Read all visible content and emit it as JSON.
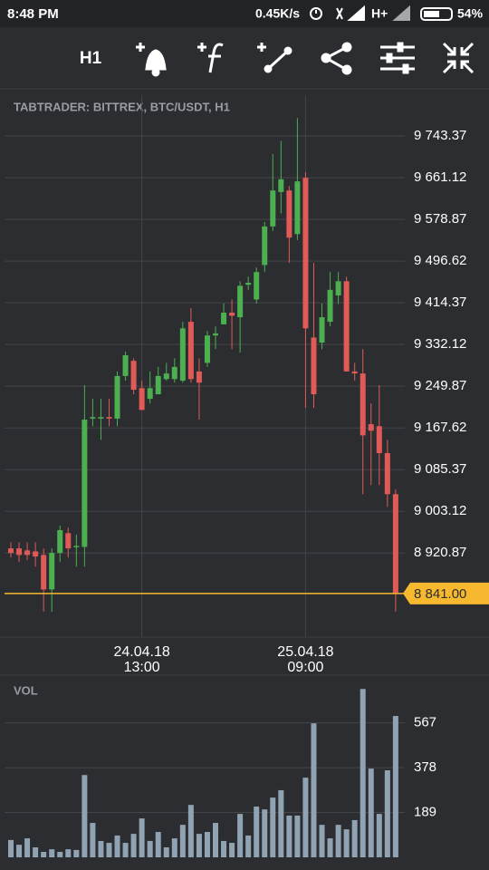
{
  "status_bar": {
    "time": "8:48 PM",
    "speed": "0.45K/s",
    "network": "H+",
    "battery": "54%"
  },
  "toolbar": {
    "timeframe": "H1"
  },
  "chart_data": [
    {
      "type": "candlestick",
      "title": "TABTRADER: BITTREX, BTC/USDT, H1",
      "categories": [
        null,
        null,
        null,
        null,
        null,
        null,
        null,
        null,
        null,
        null,
        null,
        null,
        null,
        null,
        null,
        null,
        "24.04.18\n13:00",
        null,
        null,
        null,
        null,
        null,
        null,
        null,
        null,
        null,
        null,
        null,
        null,
        null,
        null,
        null,
        null,
        null,
        null,
        null,
        "25.04.18\n09:00",
        null,
        null,
        null,
        null,
        null,
        null,
        null,
        null,
        null,
        null,
        null
      ],
      "open": [
        8930,
        8930,
        8926,
        8924,
        8917,
        8849,
        8921,
        8960,
        8933,
        8933,
        9186,
        9186,
        9189,
        9186,
        9270,
        9300,
        9246,
        9225,
        9234,
        9264,
        9264,
        9261,
        9377,
        9279,
        9296,
        9350,
        9372,
        9395,
        9386,
        9450,
        9421,
        9489,
        9565,
        9633,
        9636,
        9550,
        9661,
        9346,
        9336,
        9377,
        9429,
        9457,
        9279,
        9275,
        9175,
        9171,
        9118,
        9037
      ],
      "close": [
        8921,
        8917,
        8917,
        8914,
        8849,
        8921,
        8966,
        8930,
        8935,
        9184,
        9189,
        9189,
        9186,
        9270,
        9311,
        9243,
        9203,
        9246,
        9270,
        9275,
        9288,
        9364,
        9264,
        9257,
        9350,
        9354,
        9395,
        9389,
        9448,
        9454,
        9475,
        9565,
        9636,
        9658,
        9543,
        9654,
        9364,
        9234,
        9386,
        9440,
        9457,
        9279,
        9275,
        9153,
        9162,
        9118,
        9037,
        8840
      ],
      "high": [
        8942,
        8942,
        8942,
        8942,
        8930,
        8930,
        8975,
        8971,
        8957,
        9252,
        9225,
        9225,
        9225,
        9279,
        9318,
        9305,
        9261,
        9279,
        9288,
        9296,
        9305,
        9377,
        9404,
        9305,
        9359,
        9368,
        9413,
        9421,
        9457,
        9466,
        9484,
        9574,
        9708,
        9734,
        9645,
        9779,
        9672,
        9493,
        9413,
        9475,
        9475,
        9466,
        9296,
        9323,
        9216,
        9252,
        9144,
        9046
      ],
      "low": [
        8912,
        8903,
        8907,
        8894,
        8805,
        8805,
        8903,
        8912,
        8894,
        8894,
        9171,
        9144,
        9171,
        9171,
        9261,
        9234,
        9207,
        9216,
        9234,
        9261,
        9257,
        9257,
        9257,
        9184,
        9288,
        9323,
        9372,
        9323,
        9316,
        9440,
        9413,
        9475,
        9556,
        9591,
        9493,
        9538,
        9207,
        9207,
        9323,
        9368,
        9412,
        9279,
        9261,
        9037,
        9055,
        9055,
        9012,
        8805
      ],
      "up_color": "#4caf50",
      "down_color": "#e05a57",
      "ylim": [
        8755,
        9833
      ],
      "yticks": [
        {
          "value": 9743.37,
          "label": "9 743.37"
        },
        {
          "value": 9661.12,
          "label": "9 661.12"
        },
        {
          "value": 9578.87,
          "label": "9 578.87"
        },
        {
          "value": 9496.62,
          "label": "9 496.62"
        },
        {
          "value": 9414.37,
          "label": "9 414.37"
        },
        {
          "value": 9332.12,
          "label": "9 332.12"
        },
        {
          "value": 9249.87,
          "label": "9 249.87"
        },
        {
          "value": 9167.62,
          "label": "9 167.62"
        },
        {
          "value": 9085.37,
          "label": "9 085.37"
        },
        {
          "value": 9003.12,
          "label": "9 003.12"
        },
        {
          "value": 8920.87,
          "label": "8 920.87"
        }
      ],
      "grid": true,
      "last_price": {
        "value": 8841,
        "label": "8 841.00",
        "color": "#f5b82e"
      }
    },
    {
      "type": "bar",
      "title": "VOL",
      "values": [
        73,
        53,
        80,
        42,
        23,
        34,
        23,
        34,
        31,
        347,
        145,
        69,
        61,
        92,
        61,
        99,
        164,
        69,
        107,
        42,
        80,
        137,
        221,
        99,
        107,
        145,
        69,
        61,
        183,
        92,
        214,
        202,
        252,
        283,
        176,
        176,
        336,
        565,
        137,
        80,
        137,
        118,
        157,
        710,
        374,
        183,
        367,
        596
      ],
      "color": "#8fa3b3",
      "ylim": [
        0,
        730
      ],
      "yticks": [
        189,
        378,
        567
      ],
      "grid": true
    }
  ]
}
